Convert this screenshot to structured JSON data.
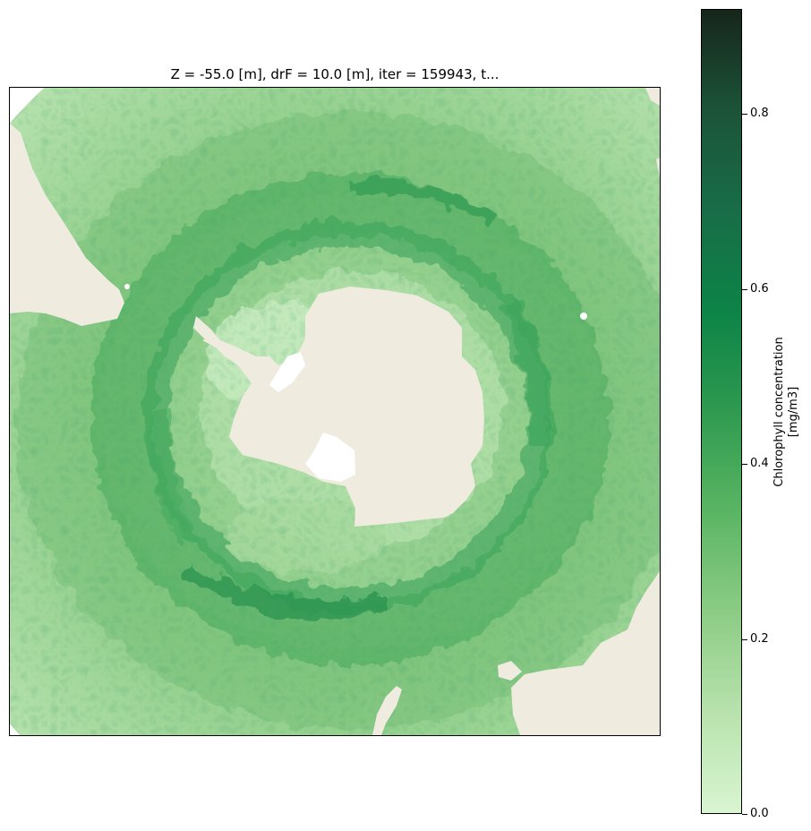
{
  "figure": {
    "title": "Z = -55.0 [m], drF = 10.0 [m], iter = 159943, t..."
  },
  "map": {
    "projection": "south polar stereographic",
    "variable": "Chlorophyll concentration",
    "land_color": "#efecdf",
    "no_data_color": "#ffffff"
  },
  "colorbar": {
    "label_line1": "Chlorophyll concentration",
    "label_line2": "[mg/m3]",
    "range": [
      0.0,
      0.92
    ],
    "ticks": [
      {
        "value": 0.0,
        "label": "0.0"
      },
      {
        "value": 0.2,
        "label": "0.2"
      },
      {
        "value": 0.4,
        "label": "0.4"
      },
      {
        "value": 0.6,
        "label": "0.6"
      },
      {
        "value": 0.8,
        "label": "0.8"
      }
    ],
    "colormap": [
      "#d9f5d1",
      "#b8e2ad",
      "#8ccc85",
      "#5ab563",
      "#2f9a50",
      "#0d8347",
      "#186d47",
      "#1c5339",
      "#16261a"
    ]
  }
}
